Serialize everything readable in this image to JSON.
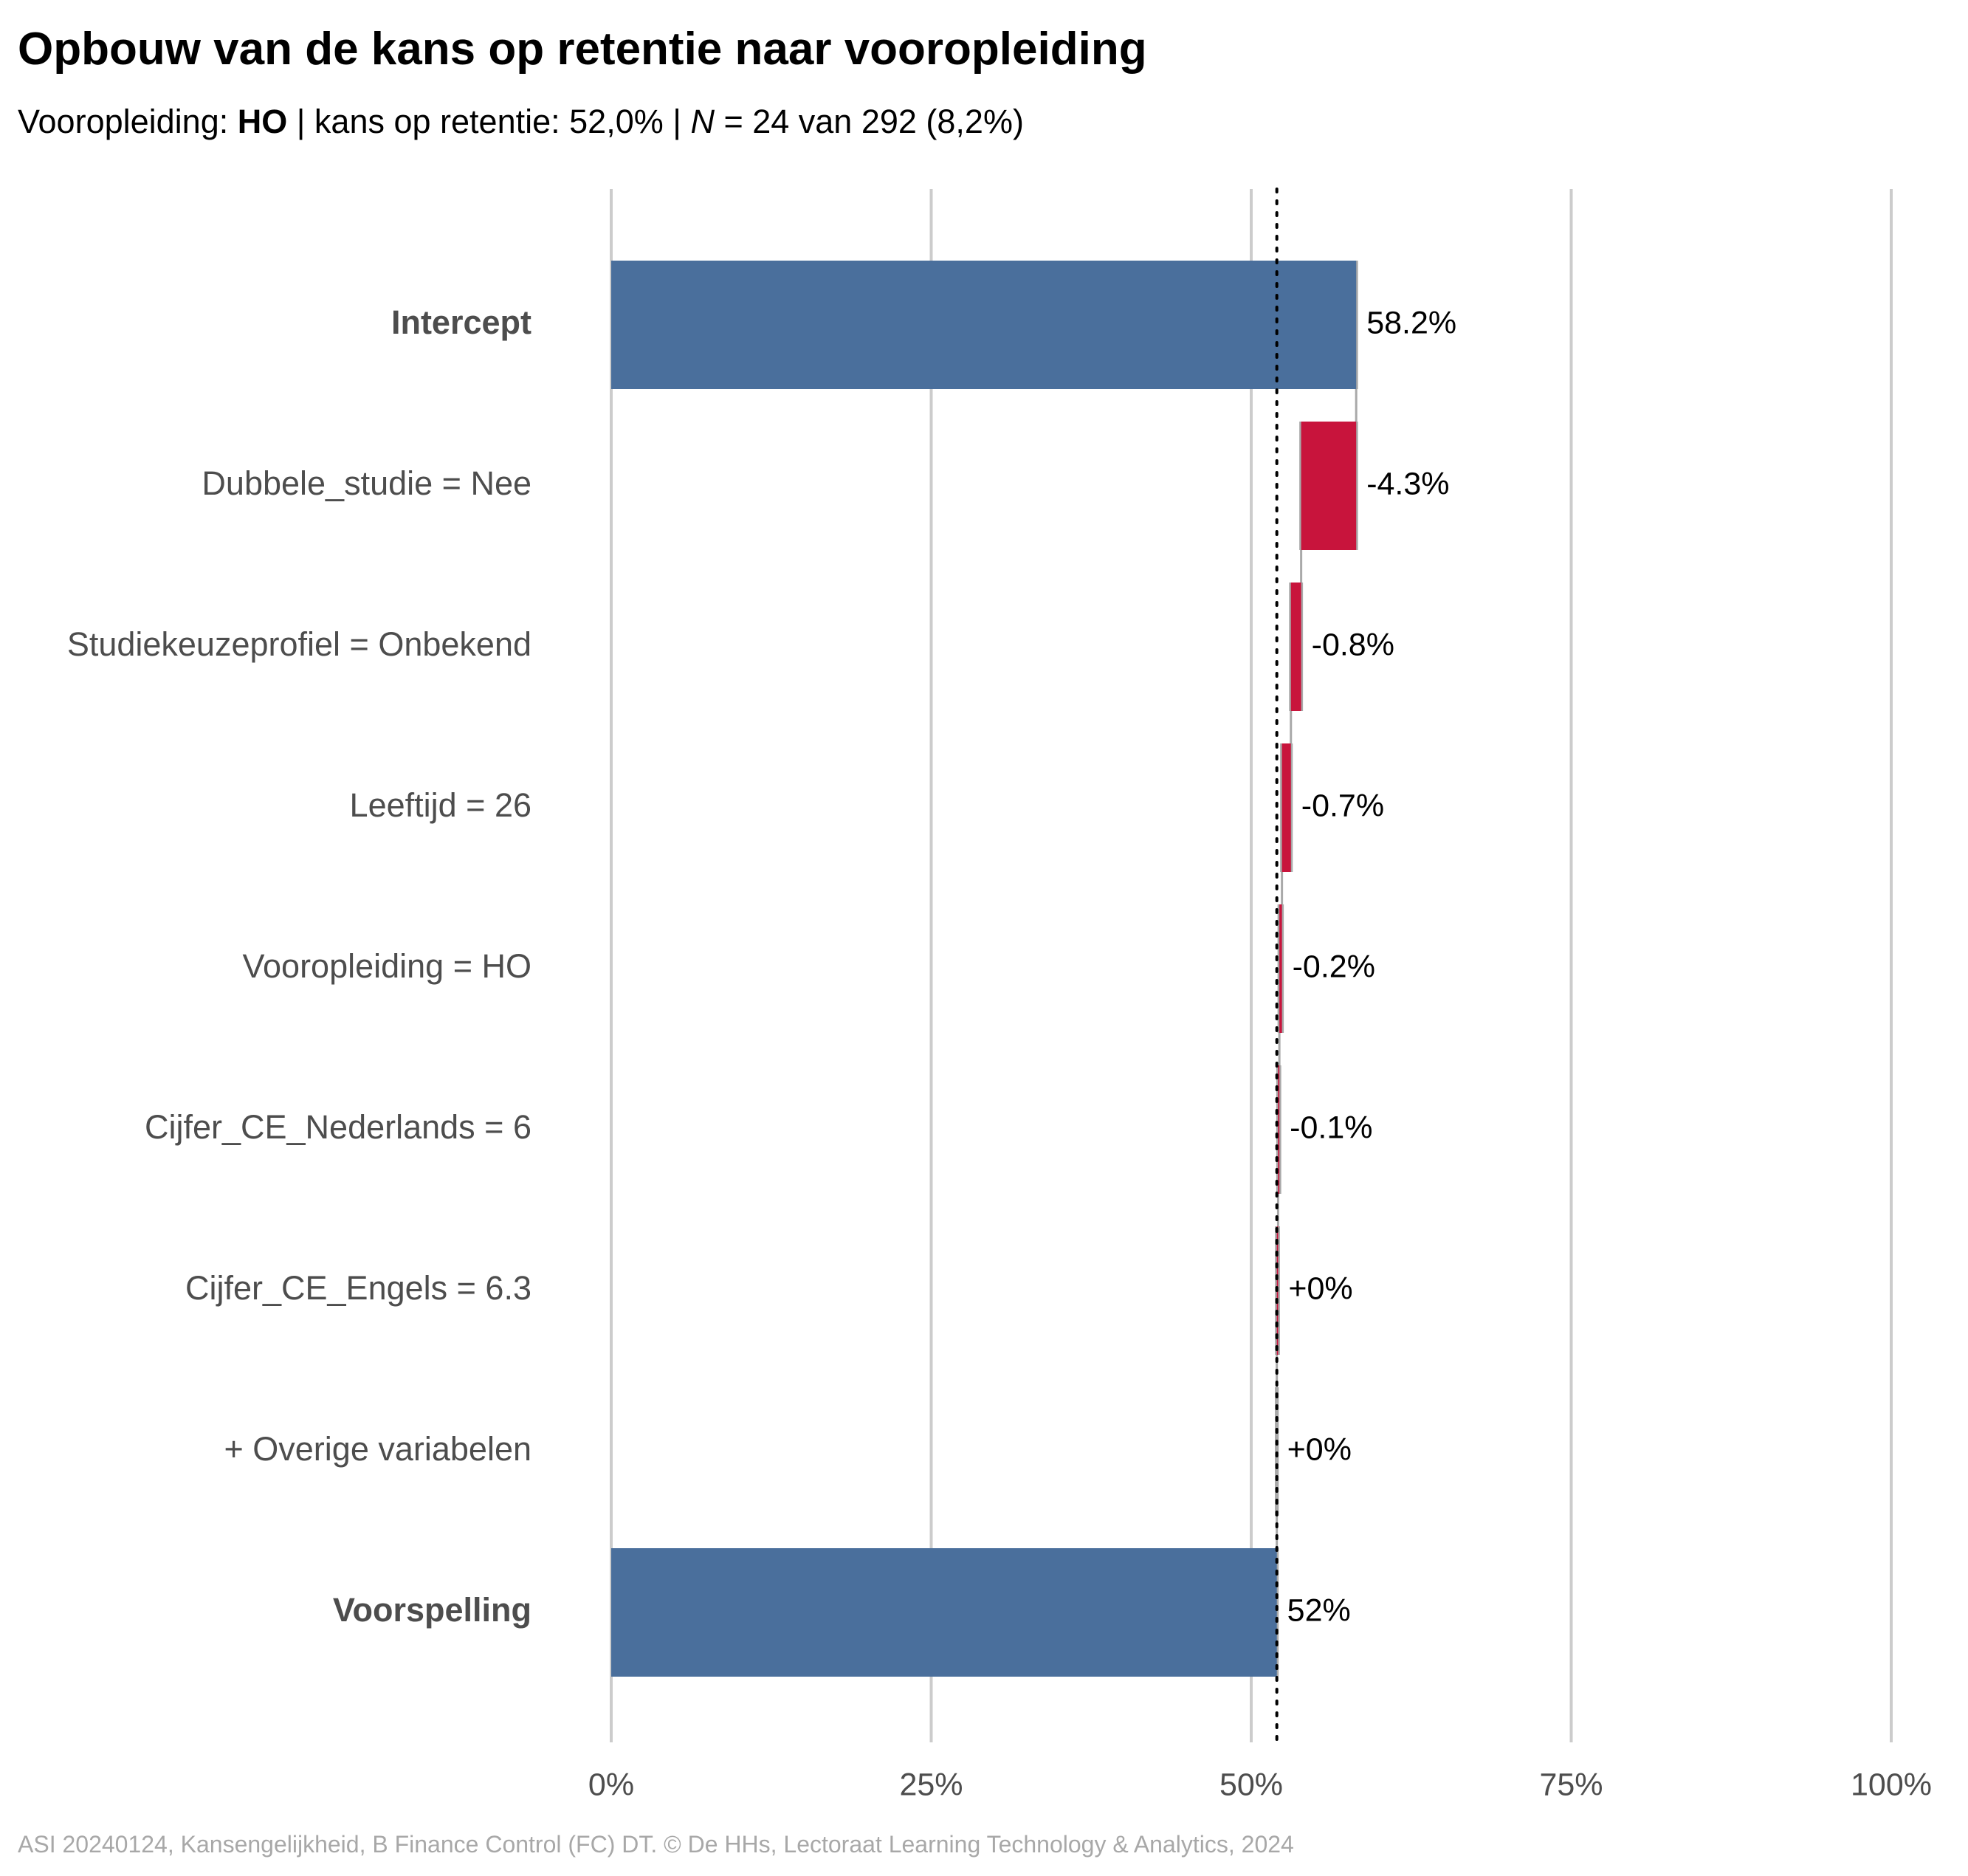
{
  "title": "Opbouw van de kans op retentie naar vooropleiding",
  "subtitle": {
    "prefix": "Vooropleiding: ",
    "group": "HO",
    "middle": " | kans op retentie: 52,0% | ",
    "n_symbol": "N",
    "n_text": " = 24 van 292 (8,2%)"
  },
  "caption": "ASI 20240124, Kansengelijkheid, B Finance Control (FC) DT. © De HHs, Lectoraat Learning Technology & Analytics, 2024",
  "colors": {
    "total_bar": "#4a6f9c",
    "negative_bar": "#c8143c",
    "connector": "#a9a9a9",
    "grid": "#cccccc",
    "reference_line": "#000000"
  },
  "chart_data": {
    "type": "bar",
    "orientation": "horizontal waterfall",
    "xlim": [
      0,
      100
    ],
    "x_ticks": [
      "0%",
      "25%",
      "50%",
      "75%",
      "100%"
    ],
    "x_tick_values": [
      0,
      25,
      50,
      75,
      100
    ],
    "reference_line": 52.0,
    "grid": true,
    "steps": [
      {
        "label": "Intercept",
        "kind": "total",
        "bold": true,
        "start": 0,
        "end": 58.2,
        "value_label": "58.2%"
      },
      {
        "label": "Dubbele_studie = Nee",
        "kind": "delta",
        "bold": false,
        "start": 58.2,
        "end": 53.9,
        "value_label": "-4.3%"
      },
      {
        "label": "Studiekeuzeprofiel = Onbekend",
        "kind": "delta",
        "bold": false,
        "start": 53.9,
        "end": 53.1,
        "value_label": "-0.8%"
      },
      {
        "label": "Leeftijd = 26",
        "kind": "delta",
        "bold": false,
        "start": 53.1,
        "end": 52.4,
        "value_label": "-0.7%"
      },
      {
        "label": "Vooropleiding = HO",
        "kind": "delta",
        "bold": false,
        "start": 52.4,
        "end": 52.2,
        "value_label": "-0.2%"
      },
      {
        "label": "Cijfer_CE_Nederlands = 6",
        "kind": "delta",
        "bold": false,
        "start": 52.2,
        "end": 52.1,
        "value_label": "-0.1%"
      },
      {
        "label": "Cijfer_CE_Engels = 6.3",
        "kind": "delta",
        "bold": false,
        "start": 52.1,
        "end": 52.0,
        "value_label": "+0%"
      },
      {
        "label": "+ Overige variabelen",
        "kind": "delta",
        "bold": false,
        "start": 52.0,
        "end": 52.0,
        "value_label": "+0%"
      },
      {
        "label": "Voorspelling",
        "kind": "total",
        "bold": true,
        "start": 0,
        "end": 52.0,
        "value_label": "52%"
      }
    ]
  }
}
